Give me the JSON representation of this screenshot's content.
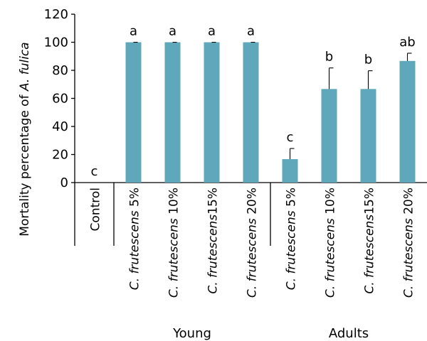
{
  "chart_data": {
    "type": "bar",
    "ylabel_prefix": "Mortality percentage of ",
    "ylabel_species": "A. fulica",
    "ylim": [
      0,
      120
    ],
    "yticks": [
      0,
      20,
      40,
      60,
      80,
      100,
      120
    ],
    "grid": false,
    "bar_color": "#5fa8bc",
    "categories": [
      {
        "prefix": "",
        "label": "Control"
      },
      {
        "prefix": "C. frutescens",
        "label": " 5%"
      },
      {
        "prefix": "C. frutescens",
        "label": " 10%"
      },
      {
        "prefix": "C. frutescens",
        "label": "15%"
      },
      {
        "prefix": "C. frutescens",
        "label": " 20%"
      },
      {
        "prefix": "C. frutescens",
        "label": " 5%"
      },
      {
        "prefix": "C. frutescens",
        "label": " 10%"
      },
      {
        "prefix": "C. frutescens",
        "label": "15%"
      },
      {
        "prefix": "C. frutescens",
        "label": " 20%"
      }
    ],
    "values": [
      0,
      100,
      100,
      100,
      100,
      16.7,
      66.7,
      66.7,
      86.7
    ],
    "errors": [
      0,
      0,
      0,
      0,
      0,
      7.6,
      15.0,
      13.0,
      5.5
    ],
    "significance": [
      "c",
      "a",
      "a",
      "a",
      "a",
      "c",
      "b",
      "b",
      "ab"
    ],
    "groups": [
      {
        "label": "Young",
        "start": 1,
        "end": 4
      },
      {
        "label": "Adults",
        "start": 5,
        "end": 8
      }
    ]
  }
}
